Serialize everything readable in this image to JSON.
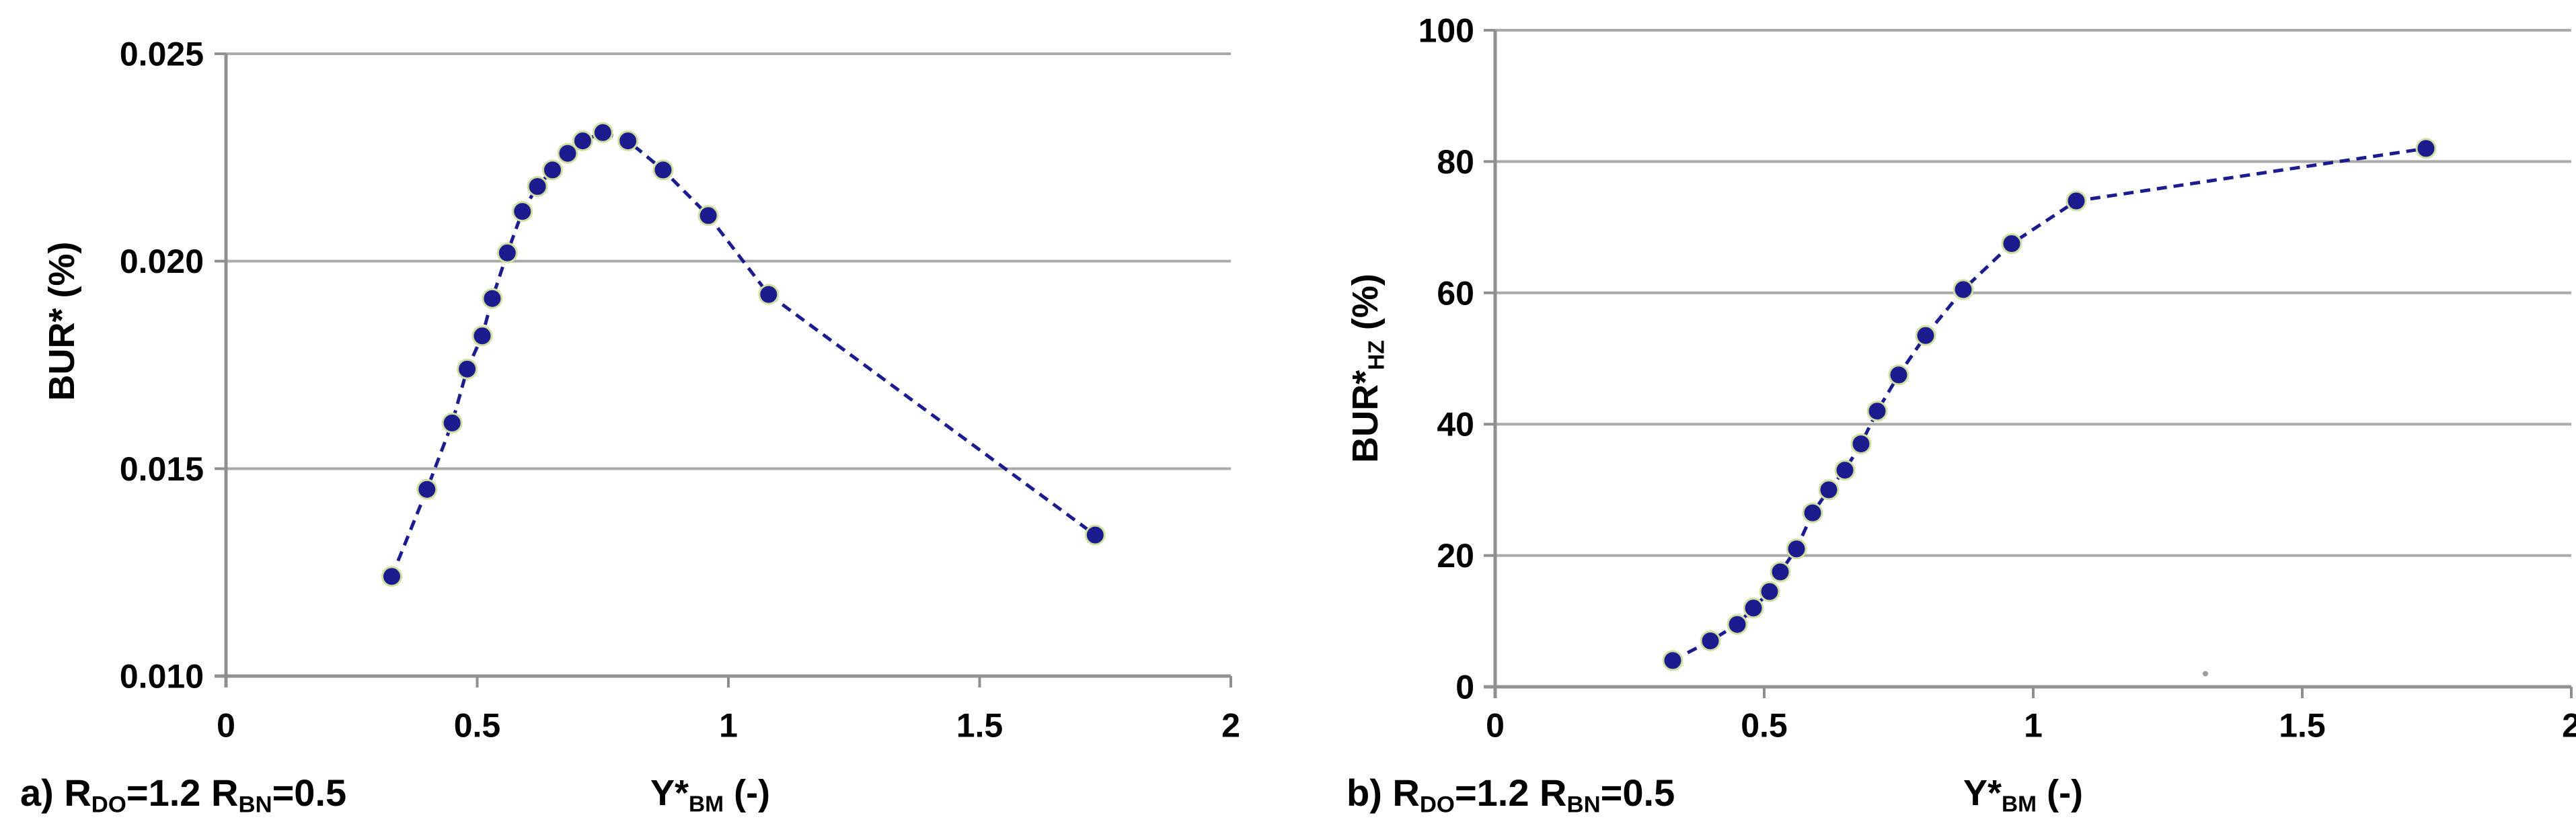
{
  "figure": {
    "background": "#ffffff",
    "marker_color": "#1c1c8e",
    "line_color": "#1c1c8e",
    "marker_halo_color": "#cfe0a0",
    "grid_color": "#aaaaaa",
    "axis_color": "#8f8f8f",
    "text_color": "#000000",
    "artifact": {
      "note": "small gray scan speck",
      "x_data": 1.32,
      "y_data": 2
    }
  },
  "chart_data": [
    {
      "type": "scatter",
      "panel": "a",
      "title": "",
      "caption": "a) R_DO=1.2 R_BN=0.5",
      "caption_parts": [
        {
          "t": "a) R"
        },
        {
          "s": "DO"
        },
        {
          "t": "=1.2 R"
        },
        {
          "s": "BN"
        },
        {
          "t": "=0.5"
        }
      ],
      "xlabel": "Y*_BM (-)",
      "xlabel_parts": [
        {
          "t": "Y*"
        },
        {
          "s": "BM"
        },
        {
          "t": " (-)"
        }
      ],
      "ylabel": "BUR* (%)",
      "ylabel_parts": [
        {
          "t": "BUR* (%)"
        }
      ],
      "xlim": [
        0,
        2
      ],
      "ylim": [
        0.01,
        0.025
      ],
      "x_tick_values": [
        0,
        0.5,
        1,
        1.5,
        2
      ],
      "x_tick_labels": [
        "0",
        "0.5",
        "1",
        "1.5",
        "2"
      ],
      "y_tick_values": [
        0.025,
        0.02,
        0.015,
        0.01
      ],
      "y_tick_labels": [
        "0.025",
        "0.020",
        "0.015",
        "0.010"
      ],
      "grid": "horizontal",
      "legend": "none",
      "line_style": "dashed",
      "marker": "filled-circle",
      "series": [
        {
          "name": "BUR*",
          "x": [
            0.33,
            0.4,
            0.45,
            0.48,
            0.51,
            0.53,
            0.56,
            0.59,
            0.62,
            0.65,
            0.68,
            0.71,
            0.75,
            0.8,
            0.87,
            0.96,
            1.08,
            1.73
          ],
          "y": [
            0.0124,
            0.0145,
            0.0161,
            0.0174,
            0.0182,
            0.0191,
            0.0202,
            0.0212,
            0.0218,
            0.0222,
            0.0226,
            0.0229,
            0.0231,
            0.0229,
            0.0222,
            0.0211,
            0.0192,
            0.0134
          ]
        }
      ]
    },
    {
      "type": "scatter",
      "panel": "b",
      "title": "",
      "caption": "b) R_DO=1.2 R_BN=0.5",
      "caption_parts": [
        {
          "t": "b) R"
        },
        {
          "s": "DO"
        },
        {
          "t": "=1.2 R"
        },
        {
          "s": "BN"
        },
        {
          "t": "=0.5"
        }
      ],
      "xlabel": "Y*_BM (-)",
      "xlabel_parts": [
        {
          "t": "Y*"
        },
        {
          "s": "BM"
        },
        {
          "t": " (-)"
        }
      ],
      "ylabel": "BUR*_HZ (%)",
      "ylabel_parts": [
        {
          "t": "BUR*"
        },
        {
          "s": "HZ"
        },
        {
          "t": " (%)"
        }
      ],
      "xlim": [
        0,
        2
      ],
      "ylim": [
        0,
        100
      ],
      "x_tick_values": [
        0,
        0.5,
        1,
        1.5,
        2
      ],
      "x_tick_labels": [
        "0",
        "0.5",
        "1",
        "1.5",
        "2"
      ],
      "y_tick_values": [
        100,
        80,
        60,
        40,
        20,
        0
      ],
      "y_tick_labels": [
        "100",
        "80",
        "60",
        "40",
        "20",
        "0"
      ],
      "grid": "horizontal",
      "legend": "none",
      "line_style": "dashed",
      "marker": "filled-circle",
      "series": [
        {
          "name": "BUR*_HZ",
          "x": [
            0.33,
            0.4,
            0.45,
            0.48,
            0.51,
            0.53,
            0.56,
            0.59,
            0.62,
            0.65,
            0.68,
            0.71,
            0.75,
            0.8,
            0.87,
            0.96,
            1.08,
            1.73
          ],
          "y": [
            4,
            7,
            9.5,
            12,
            14.5,
            17.5,
            21,
            26.5,
            30,
            33,
            37,
            42,
            47.5,
            53.5,
            60.5,
            67.5,
            74,
            82
          ]
        }
      ]
    }
  ]
}
